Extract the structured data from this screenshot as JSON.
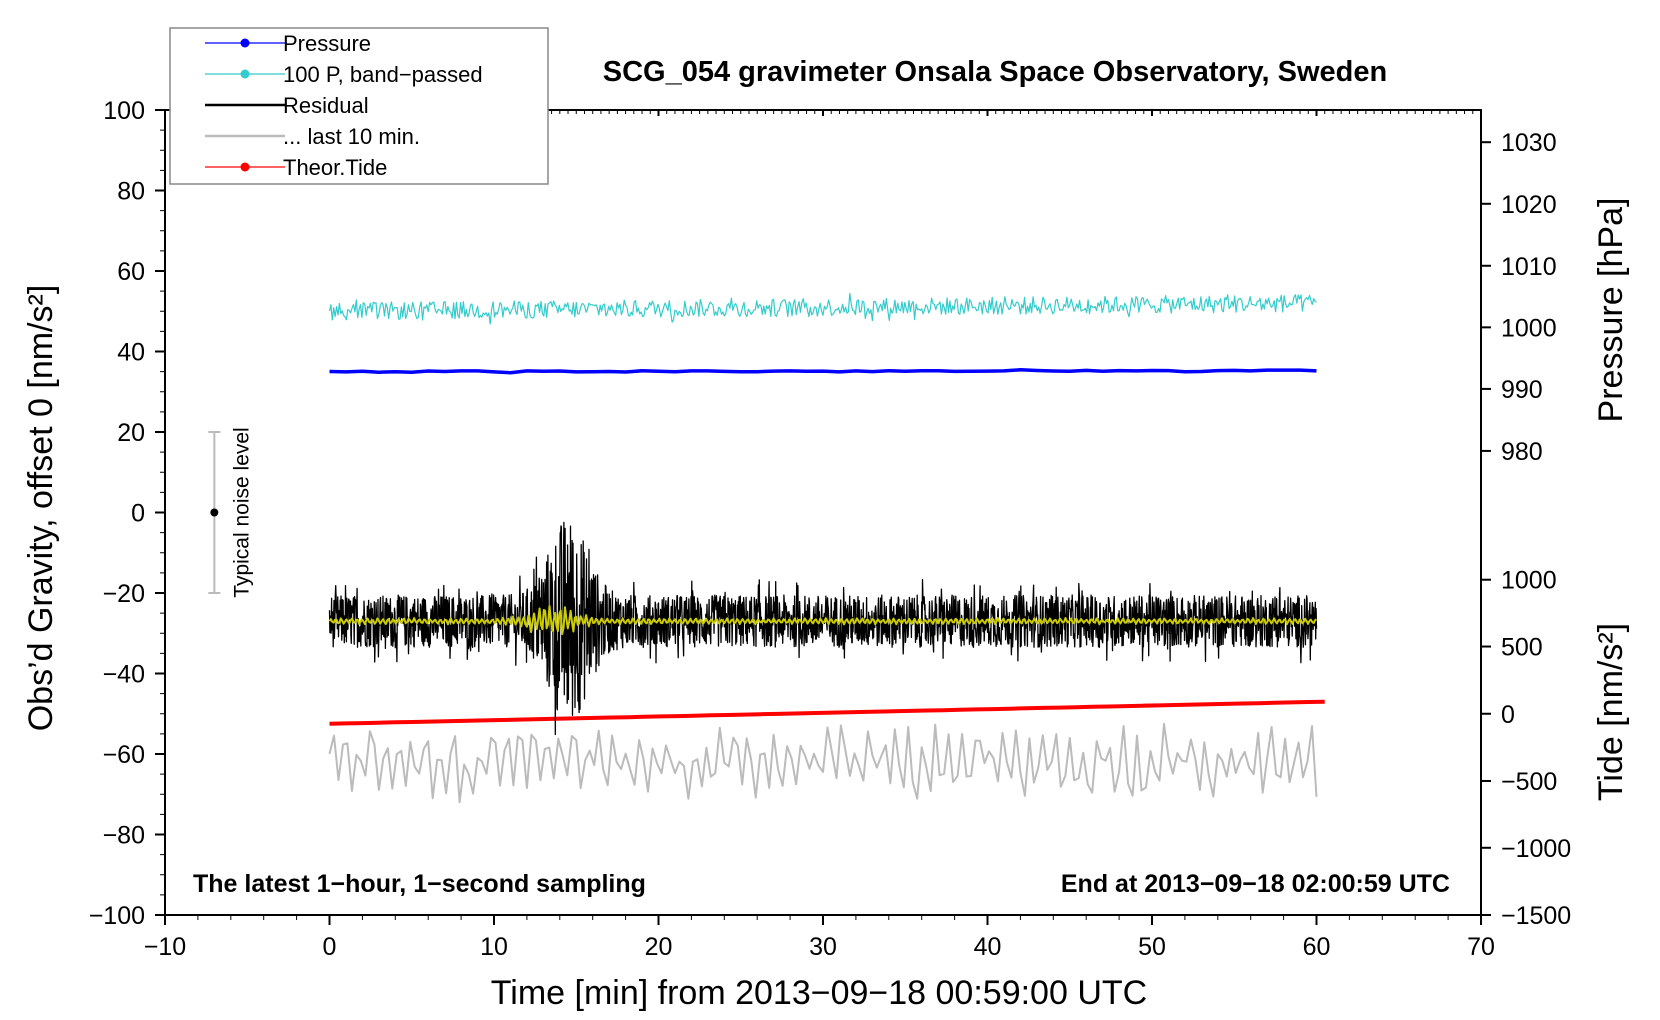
{
  "chart_data": {
    "type": "line",
    "title": "SCG_054 gravimeter Onsala Space Observatory, Sweden",
    "xlabel": "Time [min] from 2013−09−18 00:59:00 UTC",
    "ylabel": "Obs’d Gravity, offset 0 [nm/s²]",
    "ylabel_right_top": "Pressure [hPa]",
    "ylabel_right_bottom": "Tide [nm/s²]",
    "xlim": [
      -10,
      70
    ],
    "ylim": [
      -100,
      100
    ],
    "x_ticks": [
      "−10",
      "0",
      "10",
      "20",
      "30",
      "40",
      "50",
      "60",
      "70"
    ],
    "x_tick_values": [
      -10,
      0,
      10,
      20,
      30,
      40,
      50,
      60,
      70
    ],
    "y_ticks": [
      "100",
      "80",
      "60",
      "40",
      "20",
      "0",
      "−20",
      "−40",
      "−60",
      "−80",
      "−100"
    ],
    "y_tick_values": [
      100,
      80,
      60,
      40,
      20,
      0,
      -20,
      -40,
      -60,
      -80,
      -100
    ],
    "pressure_axis": {
      "ticks": [
        "1030",
        "1020",
        "1010",
        "1000",
        "990",
        "980"
      ],
      "tick_values": [
        1030,
        1020,
        1010,
        1000,
        990,
        980
      ],
      "gravity_equivalent": [
        92,
        76.7,
        61.3,
        46,
        30.7,
        15.3
      ]
    },
    "tide_axis": {
      "ticks": [
        "1000",
        "500",
        "0",
        "−500",
        "−1000",
        "−1500"
      ],
      "tick_values": [
        1000,
        500,
        0,
        -500,
        -1000,
        -1500
      ],
      "gravity_equivalent": [
        -16.7,
        -33.3,
        -50,
        -66.7,
        -83.3,
        -100
      ]
    },
    "legend": {
      "position": "top-left",
      "entries": [
        {
          "label": "Pressure",
          "color": "#0000ff",
          "marker": true
        },
        {
          "label": "100 P, band−passed",
          "color": "#33cccc",
          "marker": true
        },
        {
          "label": "Residual",
          "color": "#000000",
          "marker": false
        },
        {
          "label": "... last 10 min.",
          "color": "#bbbbbb",
          "marker": false
        },
        {
          "label": "Theor.Tide",
          "color": "#ff0000",
          "marker": true
        }
      ]
    },
    "noise_bar": {
      "label": "Typical noise level",
      "x": -7,
      "center": 0,
      "low": -20,
      "high": 20
    },
    "annotations": {
      "bottom_left": "The latest 1−hour, 1−second sampling",
      "bottom_right": "End at 2013−09−18 02:00:59 UTC"
    },
    "series": [
      {
        "name": "Pressure",
        "color": "#0000ff",
        "x_range": [
          0,
          60
        ],
        "start": 35,
        "end": 35.2,
        "noise": 0.2
      },
      {
        "name": "100 P, band−passed",
        "color": "#33cccc",
        "x_range": [
          0,
          60
        ],
        "start": 50,
        "end": 52,
        "noise": 2.2
      },
      {
        "name": "Residual",
        "color": "#000000",
        "x_range": [
          0,
          60
        ],
        "start": -27,
        "end": -27,
        "noise": 6.5,
        "burst_center": 14.5,
        "burst_amp": 20
      },
      {
        "name": "Residual (smoothed)",
        "color": "#cccc00",
        "x_range": [
          0,
          60
        ],
        "start": -27,
        "end": -27,
        "noise": 0.8,
        "burst_center": 13.5,
        "burst_amp": 4
      },
      {
        "name": "... last 10 min.",
        "color": "#bbbbbb",
        "x_range": [
          0,
          60
        ],
        "start": -62,
        "end": -62,
        "noise": 6
      },
      {
        "name": "Theor.Tide",
        "color": "#ff0000",
        "x_range": [
          0,
          60.5
        ],
        "start": -52.5,
        "end": -47,
        "noise": 0
      }
    ],
    "colors": {
      "axis": "#000000",
      "noise_bar": "#bbbbbb"
    }
  }
}
